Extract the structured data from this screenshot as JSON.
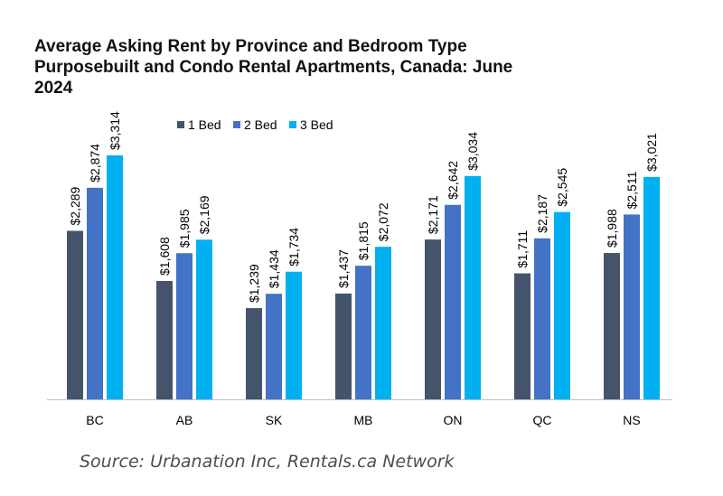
{
  "title_lines": [
    "Average Asking Rent by Province and Bedroom Type",
    "Purposebuilt and Condo Rental Apartments, Canada: June",
    "2024"
  ],
  "source": "Source: Urbanation Inc, Rentals.ca Network",
  "chart_data": {
    "type": "bar",
    "title": "Average Asking Rent by Province and Bedroom Type Purposebuilt and Condo Rental Apartments, Canada: June 2024",
    "categories": [
      "BC",
      "AB",
      "SK",
      "MB",
      "ON",
      "QC",
      "NS"
    ],
    "series": [
      {
        "name": "1 Bed",
        "color": "#44546a",
        "values": [
          2289,
          1608,
          1239,
          1437,
          2171,
          1711,
          1988
        ],
        "labels": [
          "$2,289",
          "$1,608",
          "$1,239",
          "$1,437",
          "$2,171",
          "$1,711",
          "$1,988"
        ]
      },
      {
        "name": "2 Bed",
        "color": "#4472c4",
        "values": [
          2874,
          1985,
          1434,
          1815,
          2642,
          2187,
          2511
        ],
        "labels": [
          "$2,874",
          "$1,985",
          "$1,434",
          "$1,815",
          "$2,642",
          "$2,187",
          "$2,511"
        ]
      },
      {
        "name": "3 Bed",
        "color": "#00b0f0",
        "values": [
          3314,
          2169,
          1734,
          2072,
          3034,
          2545,
          3021
        ],
        "labels": [
          "$3,314",
          "$2,169",
          "$1,734",
          "$2,072",
          "$3,034",
          "$2,545",
          "$3,021"
        ]
      }
    ],
    "ylim": [
      0,
      3314
    ],
    "xlabel": "",
    "ylabel": "",
    "grid": false,
    "legend_position": "top"
  }
}
